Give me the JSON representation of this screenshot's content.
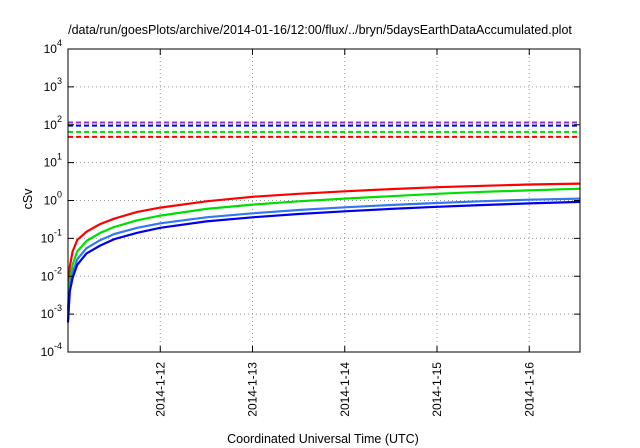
{
  "chart_data": {
    "type": "line",
    "title": "/data/run/goesPlots/archive/2014-01-16/12:00/flux/../bryn/5daysEarthDataAccumulated.plot",
    "xlabel": "Coordinated Universal Time (UTC)",
    "ylabel": "cSv",
    "yscale": "log",
    "ylim": [
      0.0001,
      10000
    ],
    "xlim": [
      11.0,
      16.55
    ],
    "grid": true,
    "legend": "none",
    "x_ticks": [
      {
        "value": 12,
        "label": "2014-1-12"
      },
      {
        "value": 13,
        "label": "2014-1-13"
      },
      {
        "value": 14,
        "label": "2014-1-14"
      },
      {
        "value": 15,
        "label": "2014-1-15"
      },
      {
        "value": 16,
        "label": "2014-1-16"
      }
    ],
    "y_ticks": [
      {
        "value": 0.0001,
        "base": "10",
        "exp": "-4"
      },
      {
        "value": 0.001,
        "base": "10",
        "exp": "-3"
      },
      {
        "value": 0.01,
        "base": "10",
        "exp": "-2"
      },
      {
        "value": 0.1,
        "base": "10",
        "exp": "-1"
      },
      {
        "value": 1,
        "base": "10",
        "exp": "0"
      },
      {
        "value": 10,
        "base": "10",
        "exp": "1"
      },
      {
        "value": 100,
        "base": "10",
        "exp": "2"
      },
      {
        "value": 1000,
        "base": "10",
        "exp": "3"
      },
      {
        "value": 10000,
        "base": "10",
        "exp": "4"
      }
    ],
    "series": [
      {
        "color": "#ff0000",
        "x": [
          11.0,
          11.02,
          11.05,
          11.1,
          11.2,
          11.35,
          11.5,
          11.75,
          12.0,
          12.5,
          13.0,
          13.5,
          14.0,
          14.5,
          15.0,
          15.5,
          16.0,
          16.55
        ],
        "y": [
          0.0012,
          0.018,
          0.045,
          0.09,
          0.15,
          0.24,
          0.33,
          0.5,
          0.65,
          0.95,
          1.25,
          1.5,
          1.75,
          2.0,
          2.25,
          2.45,
          2.65,
          2.8
        ]
      },
      {
        "color": "#00dd00",
        "x": [
          11.0,
          11.02,
          11.05,
          11.1,
          11.2,
          11.35,
          11.5,
          11.75,
          12.0,
          12.5,
          13.0,
          13.5,
          14.0,
          14.5,
          15.0,
          15.5,
          16.0,
          16.55
        ],
        "y": [
          0.0009,
          0.008,
          0.02,
          0.045,
          0.085,
          0.14,
          0.2,
          0.3,
          0.4,
          0.6,
          0.78,
          0.95,
          1.12,
          1.3,
          1.5,
          1.7,
          1.85,
          2.05
        ]
      },
      {
        "color": "#3377ee",
        "x": [
          11.0,
          11.02,
          11.05,
          11.1,
          11.2,
          11.35,
          11.5,
          11.75,
          12.0,
          12.5,
          13.0,
          13.5,
          14.0,
          14.5,
          15.0,
          15.5,
          16.0,
          16.55
        ],
        "y": [
          0.0007,
          0.005,
          0.012,
          0.028,
          0.055,
          0.09,
          0.13,
          0.19,
          0.25,
          0.36,
          0.46,
          0.56,
          0.66,
          0.76,
          0.86,
          0.96,
          1.05,
          1.12
        ]
      },
      {
        "color": "#0000ee",
        "x": [
          11.0,
          11.02,
          11.05,
          11.1,
          11.2,
          11.35,
          11.5,
          11.75,
          12.0,
          12.5,
          13.0,
          13.5,
          14.0,
          14.5,
          15.0,
          15.5,
          16.0,
          16.55
        ],
        "y": [
          0.0006,
          0.004,
          0.009,
          0.02,
          0.04,
          0.065,
          0.095,
          0.14,
          0.19,
          0.28,
          0.36,
          0.44,
          0.52,
          0.6,
          0.68,
          0.76,
          0.84,
          0.92
        ]
      }
    ],
    "thresholds": [
      {
        "color": "#9933cc",
        "y": 115
      },
      {
        "color": "#0000ee",
        "y": 95
      },
      {
        "color": "#00dd00",
        "y": 65
      },
      {
        "color": "#ff0000",
        "y": 48
      }
    ]
  }
}
